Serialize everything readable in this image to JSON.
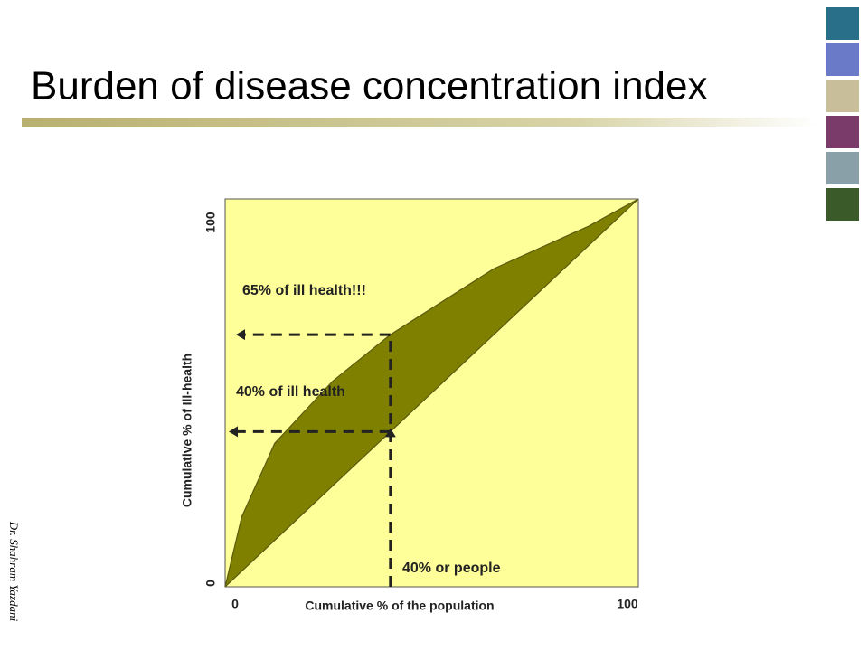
{
  "title": "Burden of disease concentration index",
  "watermark": "Dr. Shahram Yazdani",
  "chart_data": {
    "type": "area",
    "x": [
      0,
      4,
      12,
      26,
      40,
      65,
      88,
      100
    ],
    "series": [
      {
        "values": [
          0,
          18,
          37,
          53,
          65,
          82,
          93,
          100
        ],
        "color": "#808000"
      },
      {
        "values": [
          0,
          4,
          12,
          26,
          40,
          65,
          88,
          100
        ],
        "color": "#808000"
      }
    ],
    "background": "#ffff99",
    "xlabel": "Cumulative % of  the population",
    "ylabel": "Cumulative % of Ill-health",
    "xlim": [
      0,
      100
    ],
    "ylim": [
      0,
      100
    ],
    "xticks": [
      0,
      100
    ],
    "yticks": [
      0,
      100
    ],
    "annotations": [
      "65% of ill health!!!",
      "40% of ill health",
      "40% or people"
    ],
    "reference": {
      "x": 40,
      "y": [
        40,
        65
      ]
    }
  }
}
